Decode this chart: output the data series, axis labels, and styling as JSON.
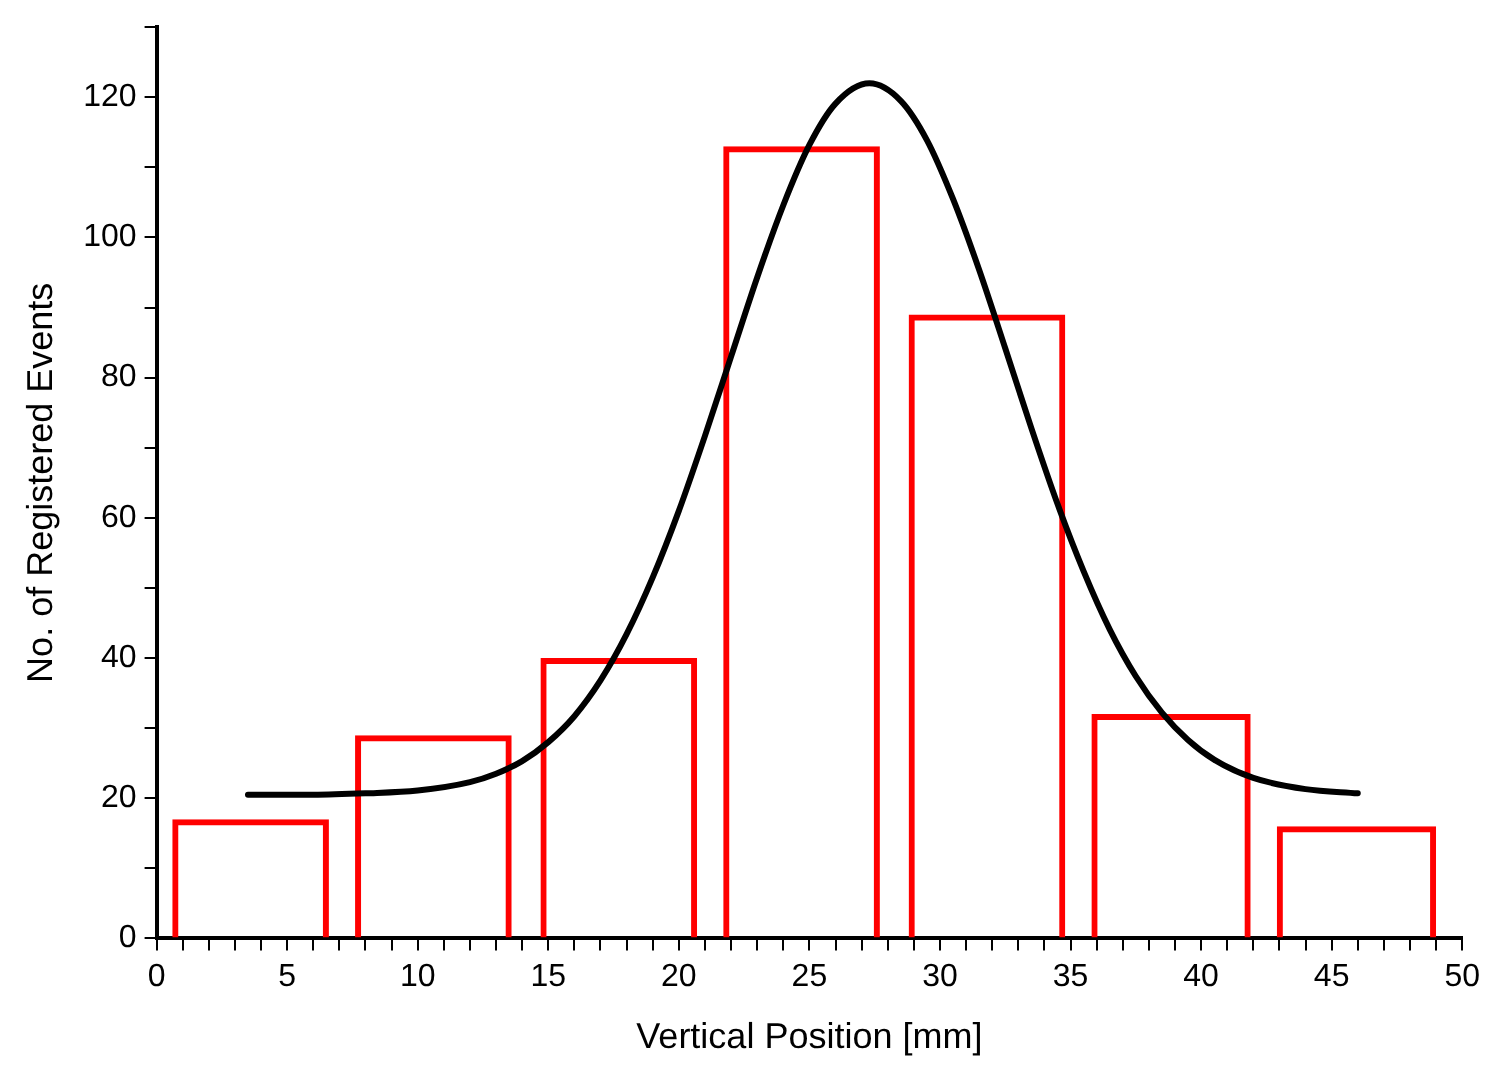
{
  "chart_data": {
    "type": "histogram",
    "xlabel": "Vertical Position [mm]",
    "ylabel": "No. of Registered Events",
    "bins": [
      0.6,
      6.6,
      7.6,
      13.6,
      14.7,
      20.7,
      21.7,
      27.7,
      28.8,
      34.8,
      35.8,
      41.9,
      42.9,
      49
    ],
    "series": [
      {
        "color": "#ff0000",
        "values": [
          17,
          null,
          29,
          null,
          40,
          null,
          113,
          null,
          89,
          null,
          32,
          null,
          16
        ]
      },
      {
        "type": "line",
        "color": "#000000",
        "marker": "none",
        "x": [
          3.5,
          6,
          8,
          10,
          12,
          13,
          14,
          15,
          16,
          17,
          18,
          19,
          20,
          21,
          22,
          23,
          24,
          25,
          26,
          27.3,
          28.5,
          29.5,
          30.5,
          31.5,
          32.5,
          33.5,
          34.5,
          35.5,
          36.5,
          37.5,
          38.5,
          39.5,
          40.5,
          42,
          44,
          46
        ],
        "values": [
          20.5,
          20.5,
          20.7,
          21.1,
          22.3,
          23.5,
          25.3,
          28.0,
          31.7,
          36.8,
          43.4,
          51.5,
          61.0,
          71.7,
          83.0,
          94.3,
          104.6,
          113.2,
          119.1,
          122,
          119.5,
          113.9,
          105.5,
          95.4,
          84.2,
          72.8,
          62.0,
          52.4,
          44.1,
          37.4,
          32.2,
          28.3,
          25.5,
          22.9,
          21.3,
          20.7
        ]
      }
    ],
    "xlim": [
      0,
      50
    ],
    "xticks": [
      0,
      {
        "value": 1,
        "label": null
      },
      {
        "value": 2,
        "label": null
      },
      {
        "value": 3,
        "label": null
      },
      {
        "value": 4,
        "label": null
      },
      5,
      {
        "value": 6,
        "label": null
      },
      {
        "value": 7,
        "label": null
      },
      {
        "value": 8,
        "label": null
      },
      {
        "value": 9,
        "label": null
      },
      10,
      {
        "value": 11,
        "label": null
      },
      {
        "value": 12,
        "label": null
      },
      {
        "value": 13,
        "label": null
      },
      {
        "value": 14,
        "label": null
      },
      15,
      {
        "value": 16,
        "label": null
      },
      {
        "value": 17,
        "label": null
      },
      {
        "value": 18,
        "label": null
      },
      {
        "value": 19,
        "label": null
      },
      20,
      {
        "value": 21,
        "label": null
      },
      {
        "value": 22,
        "label": null
      },
      {
        "value": 23,
        "label": null
      },
      {
        "value": 24,
        "label": null
      },
      25,
      {
        "value": 26,
        "label": null
      },
      {
        "value": 27,
        "label": null
      },
      {
        "value": 28,
        "label": null
      },
      {
        "value": 29,
        "label": null
      },
      30,
      {
        "value": 31,
        "label": null
      },
      {
        "value": 32,
        "label": null
      },
      {
        "value": 33,
        "label": null
      },
      {
        "value": 34,
        "label": null
      },
      35,
      {
        "value": 36,
        "label": null
      },
      {
        "value": 37,
        "label": null
      },
      {
        "value": 38,
        "label": null
      },
      {
        "value": 39,
        "label": null
      },
      40,
      {
        "value": 41,
        "label": null
      },
      {
        "value": 42,
        "label": null
      },
      {
        "value": 43,
        "label": null
      },
      {
        "value": 44,
        "label": null
      },
      45,
      {
        "value": 46,
        "label": null
      },
      {
        "value": 47,
        "label": null
      },
      {
        "value": 48,
        "label": null
      },
      {
        "value": 49,
        "label": null
      },
      50
    ],
    "ylim": [
      0,
      130
    ],
    "yticks": [
      0,
      {
        "value": 10,
        "label": null
      },
      20,
      {
        "value": 30,
        "label": null
      },
      40,
      {
        "value": 50,
        "label": null
      },
      60,
      {
        "value": 70,
        "label": null
      },
      80,
      {
        "value": 90,
        "label": null
      },
      100,
      {
        "value": 110,
        "label": null
      },
      120,
      {
        "value": 130,
        "label": null
      }
    ],
    "grid": false,
    "legend": false
  }
}
